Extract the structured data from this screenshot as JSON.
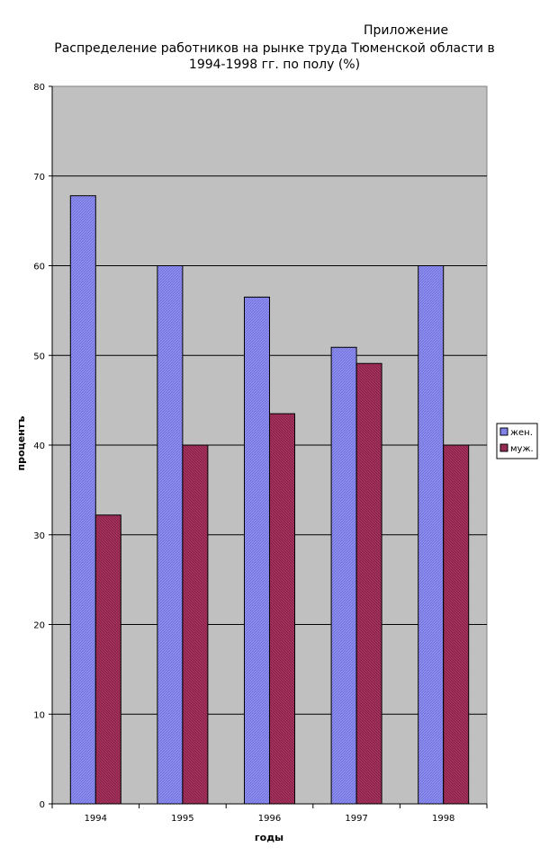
{
  "appendix_label": "Приложение",
  "chart_data": {
    "type": "bar",
    "title_line1": "Распределение работников на рынке труда Тюменской области в",
    "title_line2": "1994-1998 гг. по полу (%)",
    "xlabel": "годы",
    "ylabel": "процентъ",
    "categories": [
      "1994",
      "1995",
      "1996",
      "1997",
      "1998"
    ],
    "series": [
      {
        "name": "жен.",
        "values": [
          67.8,
          60,
          56.5,
          50.9,
          60
        ],
        "color": "#8f8ff0"
      },
      {
        "name": "муж.",
        "values": [
          32.2,
          40,
          43.5,
          49.1,
          40
        ],
        "color": "#a8325e"
      }
    ],
    "ylim": [
      0,
      80
    ],
    "yticks": [
      0,
      10,
      20,
      30,
      40,
      50,
      60,
      70,
      80
    ],
    "grid": true,
    "plot_background": "#c0c0c0",
    "legend_position": "right"
  }
}
